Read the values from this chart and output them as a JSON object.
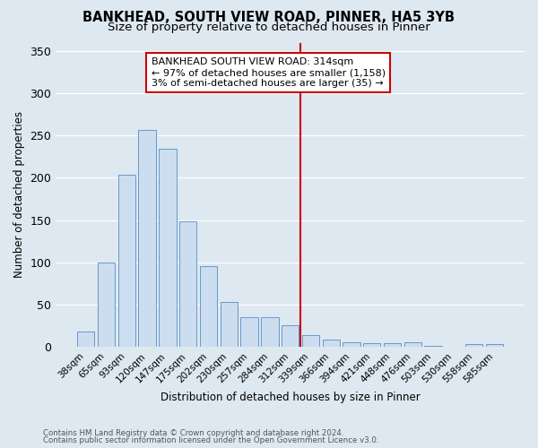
{
  "title": "BANKHEAD, SOUTH VIEW ROAD, PINNER, HA5 3YB",
  "subtitle": "Size of property relative to detached houses in Pinner",
  "xlabel": "Distribution of detached houses by size in Pinner",
  "ylabel": "Number of detached properties",
  "footnote1": "Contains HM Land Registry data © Crown copyright and database right 2024.",
  "footnote2": "Contains public sector information licensed under the Open Government Licence v3.0.",
  "bar_labels": [
    "38sqm",
    "65sqm",
    "93sqm",
    "120sqm",
    "147sqm",
    "175sqm",
    "202sqm",
    "230sqm",
    "257sqm",
    "284sqm",
    "312sqm",
    "339sqm",
    "366sqm",
    "394sqm",
    "421sqm",
    "448sqm",
    "476sqm",
    "503sqm",
    "530sqm",
    "558sqm",
    "585sqm"
  ],
  "bar_values": [
    18,
    100,
    204,
    257,
    234,
    148,
    95,
    53,
    35,
    35,
    25,
    14,
    8,
    5,
    4,
    4,
    5,
    1,
    0,
    3,
    3
  ],
  "bar_color": "#ccddef",
  "bar_edge_color": "#6699cc",
  "ylim": [
    0,
    360
  ],
  "yticks": [
    0,
    50,
    100,
    150,
    200,
    250,
    300,
    350
  ],
  "vline_x_index": 10,
  "vline_color": "#cc0000",
  "annotation_title": "BANKHEAD SOUTH VIEW ROAD: 314sqm",
  "annotation_line1": "← 97% of detached houses are smaller (1,158)",
  "annotation_line2": "3% of semi-detached houses are larger (35) →",
  "bg_color": "#dde8f0",
  "plot_bg_color": "#dde8f0",
  "title_fontsize": 10.5,
  "subtitle_fontsize": 9.5,
  "grid_color": "#ffffff"
}
